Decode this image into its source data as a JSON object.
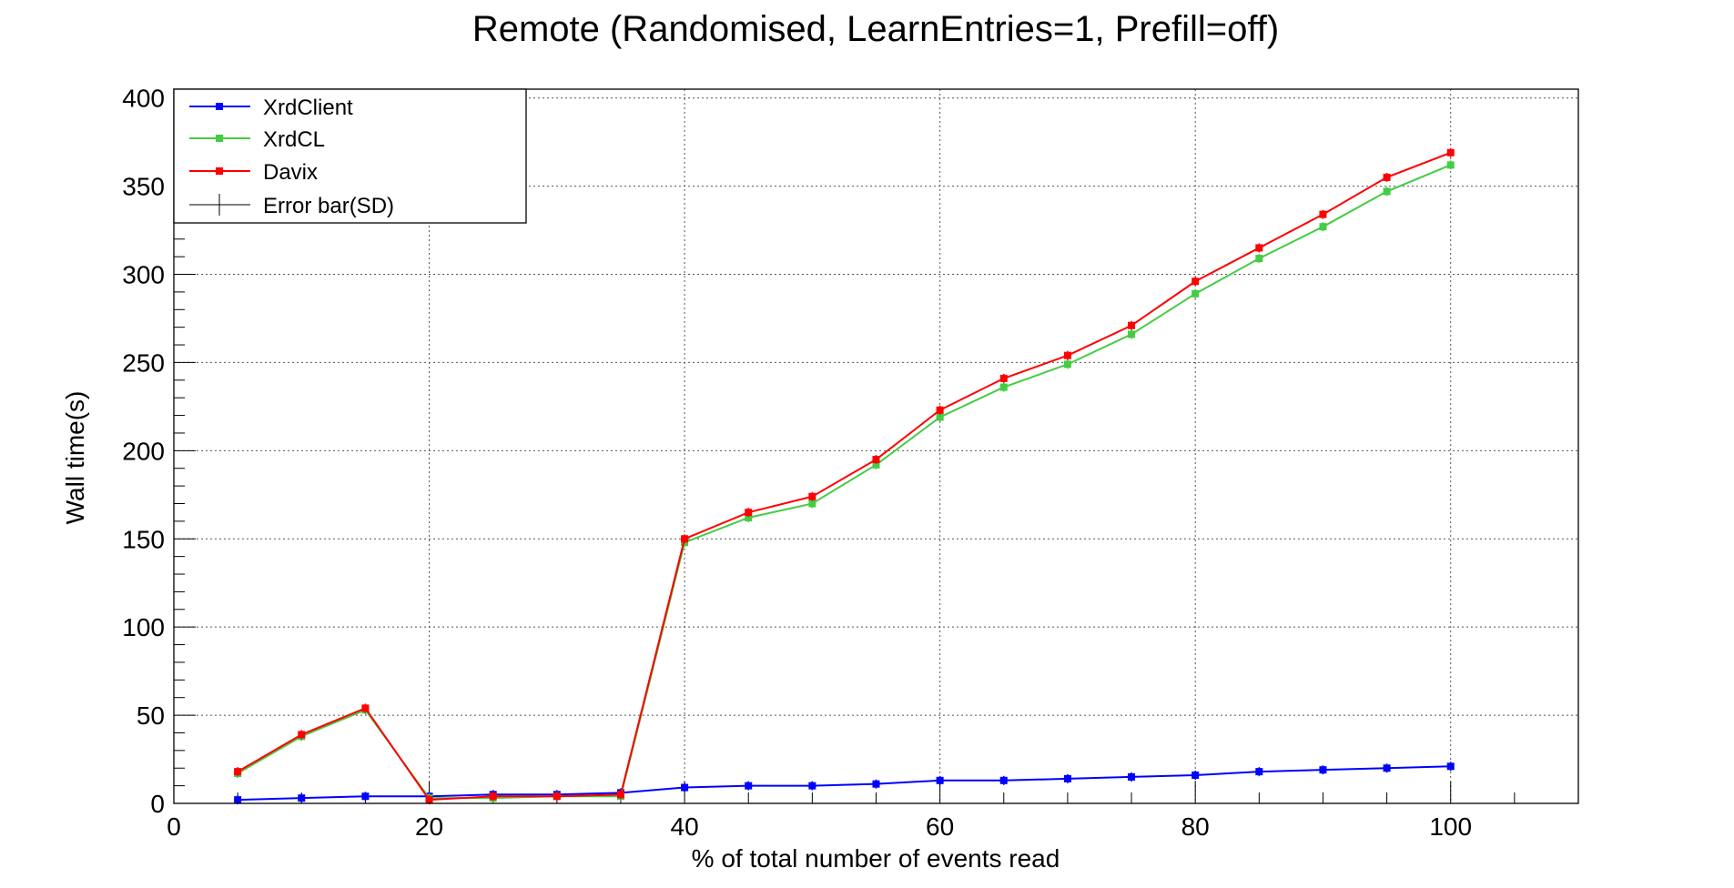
{
  "chart_data": {
    "type": "line",
    "title": "Remote (Randomised, LearnEntries=1, Prefill=off)",
    "xlabel": "% of total number of events read",
    "ylabel": "Wall time(s)",
    "xlim": [
      0,
      110
    ],
    "ylim": [
      0,
      405
    ],
    "xticks": [
      0,
      20,
      40,
      60,
      80,
      100
    ],
    "yticks": [
      0,
      50,
      100,
      150,
      200,
      250,
      300,
      350,
      400
    ],
    "grid": true,
    "legend_position": "top-left",
    "x": [
      5,
      10,
      15,
      20,
      25,
      30,
      35,
      40,
      45,
      50,
      55,
      60,
      65,
      70,
      75,
      80,
      85,
      90,
      95,
      100
    ],
    "series": [
      {
        "name": "XrdClient",
        "color": "#0000ff",
        "values": [
          2,
          3,
          4,
          4,
          5,
          5,
          6,
          9,
          10,
          10,
          11,
          13,
          13,
          14,
          15,
          16,
          18,
          19,
          20,
          21
        ]
      },
      {
        "name": "XrdCL",
        "color": "#44cc44",
        "values": [
          17,
          38,
          53,
          3,
          3,
          4,
          4,
          148,
          162,
          170,
          192,
          219,
          236,
          249,
          266,
          289,
          309,
          327,
          347,
          362
        ]
      },
      {
        "name": "Davix",
        "color": "#ff0000",
        "values": [
          18,
          39,
          54,
          2,
          4,
          4,
          5,
          150,
          165,
          174,
          195,
          223,
          241,
          254,
          271,
          296,
          315,
          334,
          355,
          369
        ]
      }
    ],
    "error_bar_legend": "Error bar(SD)"
  }
}
